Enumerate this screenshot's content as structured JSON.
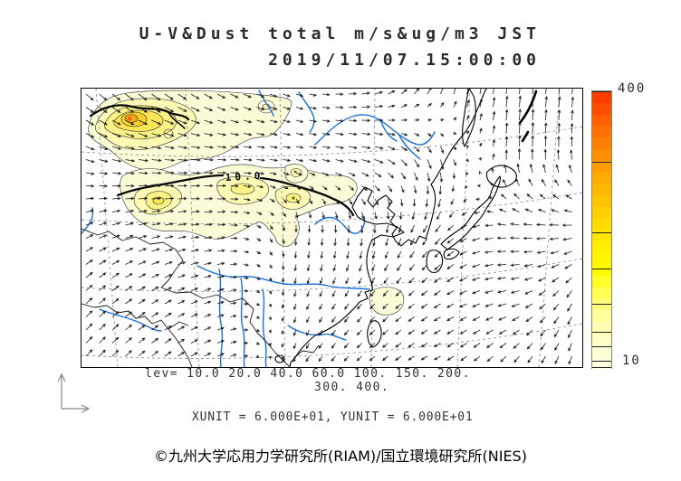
{
  "title": {
    "line1": "U-V&Dust total m/s&ug/m3 JST",
    "line2": "2019/11/07.15:00:00"
  },
  "legend": {
    "lev_line1": "lev= 10.0 20.0 40.0 60.0 100. 150. 200.",
    "lev_line2": "300. 400.",
    "unit_line": "XUNIT = 6.000E+01, YUNIT = 6.000E+01"
  },
  "footer": {
    "copyright": "©九州大学応用力学研究所(RIAM)/国立環境研究所(NIES)"
  },
  "map": {
    "contour_label": "10.0",
    "river_color": "#1d6fd8",
    "arrow_color": "#1a1a1a",
    "dust_palette": {
      "c10": "#fbfbd8",
      "c20": "#fcf9b4",
      "c40": "#fbf286",
      "c60": "#f9e556",
      "c100": "#f6cf2e",
      "c150": "#f2a81c",
      "c200": "#ee7d12"
    }
  },
  "colorbar": {
    "max_label": "400",
    "min_label": "10",
    "min": 10,
    "max": 400,
    "levels": [
      10,
      20,
      40,
      60,
      100,
      150,
      200,
      300,
      400
    ],
    "segments": [
      "#ff3c00",
      "#ff4c00",
      "#ff5f00",
      "#ff7000",
      "#ff8000",
      "#ff8f00",
      "#ff9d00",
      "#ffab00",
      "#ffb800",
      "#ffc400",
      "#ffd000",
      "#ffdb00",
      "#ffe500",
      "#ffee00",
      "#fff600",
      "#fffd00",
      "#ffff2a",
      "#ffff55",
      "#ffff7d",
      "#ffff9e",
      "#ffffb4",
      "#ffffc6",
      "#ffffd4",
      "#ffffe0"
    ]
  },
  "wind": {
    "spacing": 14.5,
    "arrow_len": 11,
    "cols": [
      0,
      79,
      158,
      237,
      316,
      395,
      474,
      553
    ],
    "rows": [
      0,
      77,
      154,
      231,
      308
    ],
    "angles": [
      [
        -42,
        -38,
        -28,
        -18,
        12,
        72,
        85,
        80
      ],
      [
        -18,
        -6,
        -2,
        -10,
        -15,
        -75,
        88,
        95
      ],
      [
        24,
        12,
        4,
        -92,
        -90,
        -128,
        172,
        185
      ],
      [
        44,
        30,
        14,
        -108,
        -130,
        -146,
        -168,
        -115
      ],
      [
        48,
        40,
        22,
        -118,
        -140,
        -152,
        -128,
        -106
      ]
    ],
    "mags": [
      [
        0.95,
        1.05,
        0.85,
        0.7,
        0.8,
        1.0,
        1.15,
        1.0
      ],
      [
        0.85,
        0.95,
        0.85,
        0.7,
        0.9,
        1.05,
        1.1,
        0.95
      ],
      [
        0.75,
        0.85,
        0.75,
        0.7,
        0.8,
        0.85,
        0.9,
        0.95
      ],
      [
        0.85,
        0.75,
        0.65,
        0.6,
        0.7,
        0.75,
        0.85,
        0.9
      ],
      [
        0.9,
        0.8,
        0.7,
        0.6,
        0.65,
        0.7,
        0.8,
        0.85
      ]
    ]
  }
}
